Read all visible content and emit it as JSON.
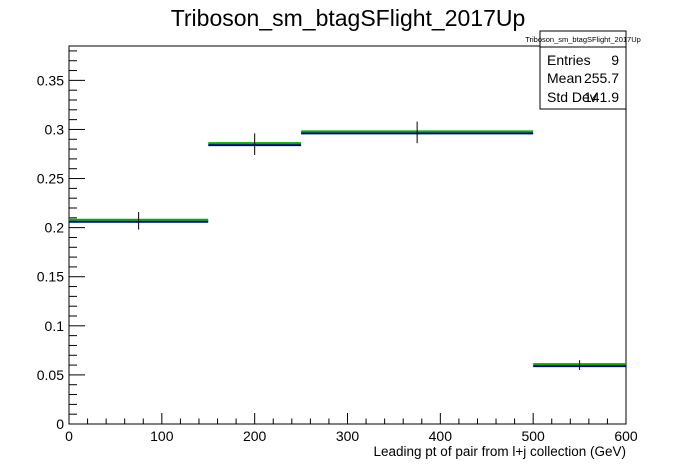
{
  "chart_data": {
    "type": "histogram",
    "title": "Triboson_sm_btagSFlight_2017Up",
    "xlabel": "Leading pt of pair from l+j collection (GeV)",
    "ylabel": "",
    "xlim": [
      0,
      600
    ],
    "ylim": [
      0,
      0.385
    ],
    "x_ticks": [
      0,
      100,
      200,
      300,
      400,
      500,
      600
    ],
    "x_tick_labels": [
      "0",
      "100",
      "200",
      "300",
      "400",
      "500",
      "600"
    ],
    "y_ticks": [
      0,
      0.05,
      0.1,
      0.15,
      0.2,
      0.25,
      0.3,
      0.35
    ],
    "y_tick_labels": [
      "0",
      "0.05",
      "0.1",
      "0.15",
      "0.2",
      "0.25",
      "0.3",
      "0.35"
    ],
    "grid": false,
    "bins": [
      {
        "x_low": 0,
        "x_high": 150,
        "x_center": 75,
        "value": 0.207,
        "error": 0.009
      },
      {
        "x_low": 150,
        "x_high": 250,
        "x_center": 200,
        "value": 0.285,
        "error": 0.011
      },
      {
        "x_low": 250,
        "x_high": 500,
        "x_center": 375,
        "value": 0.297,
        "error": 0.011
      },
      {
        "x_low": 500,
        "x_high": 600,
        "x_center": 550,
        "value": 0.06,
        "error": 0.005
      }
    ],
    "colors": {
      "fill_line": "#00b000",
      "marker": "#000080",
      "axis": "#000000"
    },
    "stats_box": {
      "placement": "top-right",
      "title": "Triboson_sm_btagSFlight_2017Up",
      "rows": [
        {
          "label": "Entries",
          "value": "9"
        },
        {
          "label": "Mean",
          "value": "255.7"
        },
        {
          "label": "Std Dev",
          "value": "141.9"
        }
      ]
    }
  }
}
